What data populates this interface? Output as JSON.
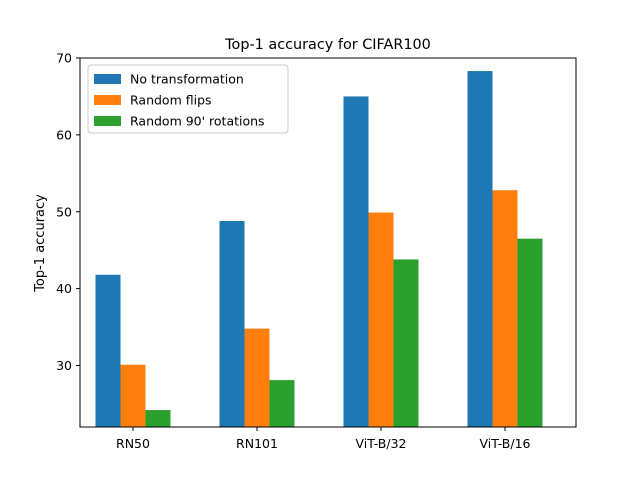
{
  "chart_data": {
    "type": "bar",
    "title": "Top-1 accuracy for CIFAR100",
    "xlabel": "",
    "ylabel": "Top-1 accuracy",
    "categories": [
      "RN50",
      "RN101",
      "ViT-B/32",
      "ViT-B/16"
    ],
    "series": [
      {
        "name": "No transformation",
        "color": "#1f77b4",
        "values": [
          41.8,
          48.8,
          65.0,
          68.3
        ]
      },
      {
        "name": "Random flips",
        "color": "#ff7f0e",
        "values": [
          30.1,
          34.8,
          49.9,
          52.8
        ]
      },
      {
        "name": "Random 90' rotations",
        "color": "#2ca02c",
        "values": [
          24.2,
          28.1,
          43.8,
          46.5
        ]
      }
    ],
    "ylim": [
      22,
      70
    ],
    "yticks": [
      "30",
      "40",
      "50",
      "60",
      "70"
    ],
    "legend": "top-left",
    "grid": false
  }
}
